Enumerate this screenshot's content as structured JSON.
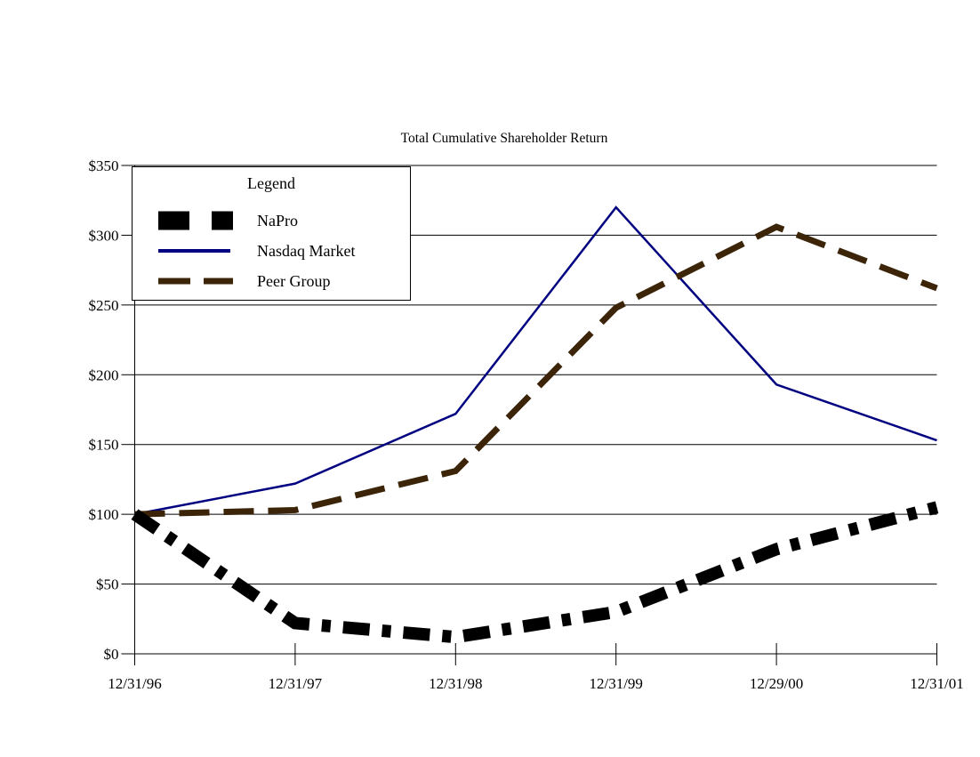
{
  "title": "Total Cumulative Shareholder Return",
  "legend": {
    "title": "Legend",
    "items": [
      {
        "label": "NaPro",
        "color": "#000000",
        "style": "thick-dash"
      },
      {
        "label": "Nasdaq Market",
        "color": "#000080",
        "style": "solid"
      },
      {
        "label": "Peer Group",
        "color": "#3B2408",
        "style": "dash"
      }
    ]
  },
  "chart_data": {
    "type": "line",
    "title": "Total Cumulative Shareholder Return",
    "x": [
      "12/31/96",
      "12/31/97",
      "12/31/98",
      "12/31/99",
      "12/29/00",
      "12/31/01"
    ],
    "series": [
      {
        "name": "NaPro",
        "color": "#000000",
        "style": "thick-dash",
        "values": [
          100,
          22,
          12,
          30,
          75,
          105
        ]
      },
      {
        "name": "Nasdaq Market",
        "color": "#000080",
        "style": "solid",
        "values": [
          100,
          122,
          172,
          320,
          193,
          153
        ]
      },
      {
        "name": "Peer Group",
        "color": "#3B2408",
        "style": "dash",
        "values": [
          100,
          103,
          131,
          248,
          306,
          262
        ]
      }
    ],
    "xlabel": "",
    "ylabel": "",
    "ylim": [
      0,
      350
    ],
    "ytick_step": 50,
    "ytick_prefix": "$",
    "grid": true,
    "legend_position": "top-left"
  }
}
